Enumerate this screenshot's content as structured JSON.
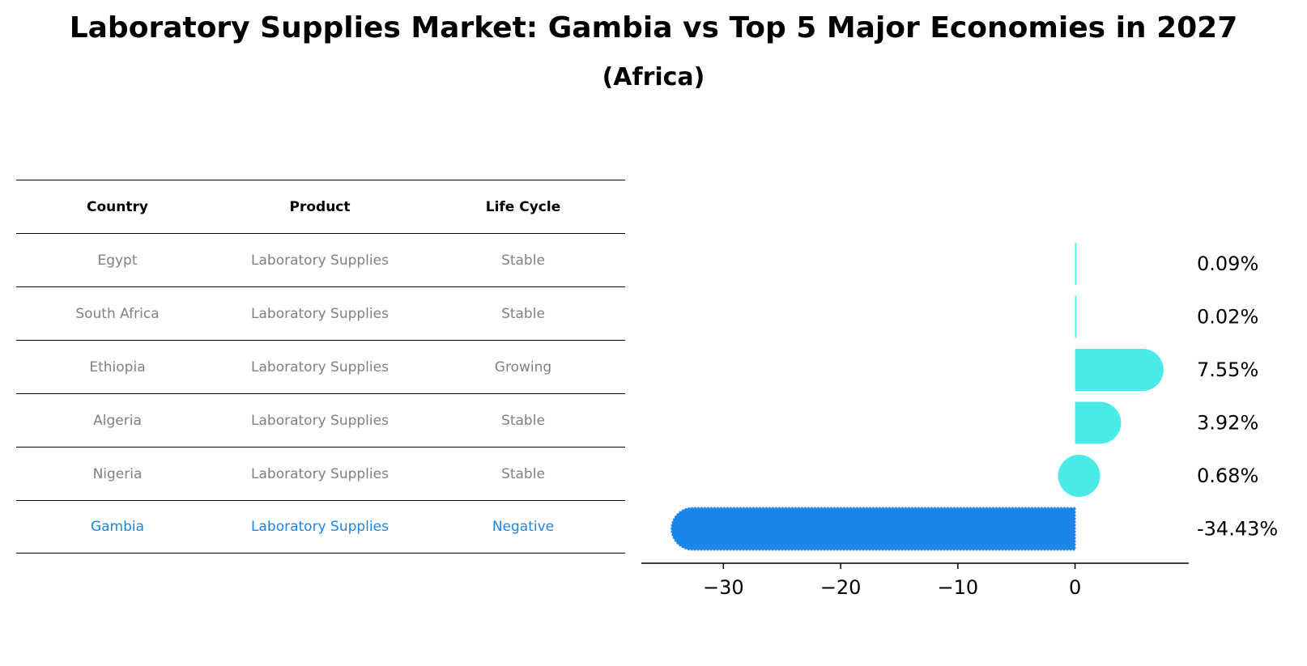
{
  "title": "Laboratory Supplies Market: Gambia vs Top 5 Major Economies in 2027",
  "subtitle": "(Africa)",
  "table": {
    "headers": [
      "Country",
      "Product",
      "Life Cycle"
    ],
    "rows": [
      {
        "country": "Egypt",
        "product": "Laboratory Supplies",
        "life_cycle": "Stable"
      },
      {
        "country": "South Africa",
        "product": "Laboratory Supplies",
        "life_cycle": "Stable"
      },
      {
        "country": "Ethiopia",
        "product": "Laboratory Supplies",
        "life_cycle": "Growing"
      },
      {
        "country": "Algeria",
        "product": "Laboratory Supplies",
        "life_cycle": "Stable"
      },
      {
        "country": "Nigeria",
        "product": "Laboratory Supplies",
        "life_cycle": "Stable"
      },
      {
        "country": "Gambia",
        "product": "Laboratory Supplies",
        "life_cycle": "Negative"
      }
    ]
  },
  "colors": {
    "highlight": "#1a86ea",
    "bar": "#4aeae8",
    "text_muted": "#808080"
  },
  "chart_data": {
    "type": "bar",
    "orientation": "horizontal",
    "categories": [
      "Egypt",
      "South Africa",
      "Ethiopia",
      "Algeria",
      "Nigeria",
      "Gambia"
    ],
    "values": [
      0.09,
      0.02,
      7.55,
      3.92,
      0.68,
      -34.43
    ],
    "value_labels": [
      "0.09%",
      "0.02%",
      "7.55%",
      "3.92%",
      "0.68%",
      "-34.43%"
    ],
    "highlight_category": "Gambia",
    "xlim": [
      -37,
      9.7
    ],
    "xticks": [
      -30,
      -20,
      -10,
      0
    ],
    "xtick_labels": [
      "−30",
      "−20",
      "−10",
      "0"
    ],
    "grid": false
  }
}
